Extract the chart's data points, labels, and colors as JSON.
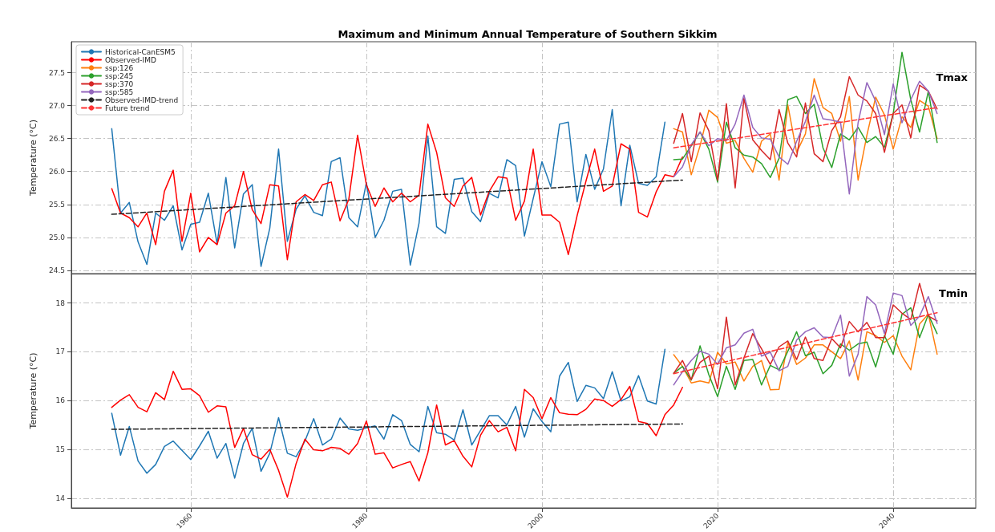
{
  "chart_data": [
    {
      "type": "line",
      "title": "Maximum and Minimum Annual Temperature of Southern Sikkim",
      "ylabel": "Temperature (°C)",
      "annotations": [
        "Tmax"
      ],
      "xlim": [
        1946.4,
        2049.4
      ],
      "xticks": [
        1960,
        1980,
        2000,
        2020,
        2040
      ],
      "ylim": [
        24.45,
        27.97
      ],
      "yticks": [
        24.5,
        {
          "value": 25,
          "label": "25.0"
        },
        25.5,
        {
          "value": 26,
          "label": "26.0"
        },
        26.5,
        {
          "value": 27,
          "label": "27.0"
        },
        27.5
      ],
      "grid": true,
      "legend": "top left",
      "tick_labels": "y",
      "marker": "none",
      "series": [
        {
          "name": "Historical-CanESM5",
          "color": "#1f77b4",
          "x": [
            1951,
            1952,
            1953,
            1954,
            1955,
            1956,
            1957,
            1958,
            1959,
            1960,
            1961,
            1962,
            1963,
            1964,
            1965,
            1966,
            1967,
            1968,
            1969,
            1970,
            1971,
            1972,
            1973,
            1974,
            1975,
            1976,
            1977,
            1978,
            1979,
            1980,
            1981,
            1982,
            1983,
            1984,
            1985,
            1986,
            1987,
            1988,
            1989,
            1990,
            1991,
            1992,
            1993,
            1994,
            1995,
            1996,
            1997,
            1998,
            1999,
            2000,
            2001,
            2002,
            2003,
            2004,
            2005,
            2006,
            2007,
            2008,
            2009,
            2010,
            2011,
            2012,
            2013,
            2014
          ],
          "values": [
            26.65,
            25.37,
            25.53,
            24.93,
            24.59,
            25.37,
            25.26,
            25.48,
            24.81,
            25.2,
            25.23,
            25.67,
            24.9,
            25.91,
            24.84,
            25.66,
            25.8,
            24.56,
            25.14,
            26.34,
            24.94,
            25.43,
            25.63,
            25.38,
            25.33,
            26.15,
            26.21,
            25.3,
            25.16,
            25.83,
            25.0,
            25.26,
            25.7,
            25.73,
            24.58,
            25.22,
            26.54,
            25.16,
            25.06,
            25.88,
            25.9,
            25.39,
            25.24,
            25.67,
            25.6,
            26.18,
            26.09,
            25.02,
            25.59,
            26.15,
            25.77,
            26.72,
            26.75,
            25.54,
            26.26,
            25.73,
            26.04,
            26.94,
            25.48,
            26.4,
            25.82,
            25.79,
            25.92,
            26.75
          ]
        },
        {
          "name": "Observed-IMD",
          "color": "#ff0000",
          "x": [
            1951,
            1952,
            1953,
            1954,
            1955,
            1956,
            1957,
            1958,
            1959,
            1960,
            1961,
            1962,
            1963,
            1964,
            1965,
            1966,
            1967,
            1968,
            1969,
            1970,
            1971,
            1972,
            1973,
            1974,
            1975,
            1976,
            1977,
            1978,
            1979,
            1980,
            1981,
            1982,
            1983,
            1984,
            1985,
            1986,
            1987,
            1988,
            1989,
            1990,
            1991,
            1992,
            1993,
            1994,
            1995,
            1996,
            1997,
            1998,
            1999,
            2000,
            2001,
            2002,
            2003,
            2004,
            2005,
            2006,
            2007,
            2008,
            2009,
            2010,
            2011,
            2012,
            2013,
            2014,
            2015,
            2016
          ],
          "values": [
            25.74,
            25.37,
            25.3,
            25.16,
            25.37,
            24.89,
            25.7,
            26.02,
            24.94,
            25.67,
            24.78,
            25.0,
            24.89,
            25.37,
            25.48,
            26.0,
            25.42,
            25.21,
            25.8,
            25.78,
            24.66,
            25.54,
            25.65,
            25.56,
            25.8,
            25.84,
            25.25,
            25.58,
            26.55,
            25.8,
            25.47,
            25.75,
            25.54,
            25.67,
            25.54,
            25.64,
            26.72,
            26.29,
            25.6,
            25.47,
            25.78,
            25.91,
            25.34,
            25.7,
            25.92,
            25.9,
            25.26,
            25.55,
            26.34,
            25.34,
            25.34,
            25.23,
            24.74,
            25.33,
            25.85,
            26.34,
            25.7,
            25.78,
            26.42,
            26.34,
            25.38,
            25.31,
            25.69,
            25.95,
            25.92,
            26.22
          ]
        },
        {
          "name": "ssp:126",
          "color": "#ff7f0e",
          "x": [
            2015,
            2016,
            2017,
            2018,
            2019,
            2020,
            2021,
            2022,
            2023,
            2024,
            2025,
            2026,
            2027,
            2028,
            2029,
            2030,
            2031,
            2032,
            2033,
            2034,
            2035,
            2036,
            2037,
            2038,
            2039,
            2040,
            2041,
            2042,
            2043,
            2044,
            2045
          ],
          "values": [
            26.65,
            26.6,
            25.95,
            26.39,
            26.93,
            26.82,
            26.43,
            26.47,
            26.2,
            25.99,
            26.46,
            26.57,
            25.87,
            27.01,
            26.29,
            26.57,
            27.41,
            26.97,
            26.88,
            26.46,
            27.14,
            25.87,
            26.55,
            27.13,
            26.86,
            26.34,
            26.83,
            26.67,
            27.08,
            26.99,
            26.5
          ]
        },
        {
          "name": "ssp:245",
          "color": "#2ca02c",
          "x": [
            2015,
            2016,
            2017,
            2018,
            2019,
            2020,
            2021,
            2022,
            2023,
            2024,
            2025,
            2026,
            2027,
            2028,
            2029,
            2030,
            2031,
            2032,
            2033,
            2034,
            2035,
            2036,
            2037,
            2038,
            2039,
            2040,
            2041,
            2042,
            2043,
            2044,
            2045
          ],
          "values": [
            26.18,
            26.19,
            26.39,
            26.6,
            26.34,
            25.84,
            26.75,
            26.36,
            26.25,
            26.22,
            26.12,
            25.91,
            26.2,
            27.09,
            27.14,
            26.88,
            27.02,
            26.36,
            26.06,
            26.57,
            26.48,
            26.67,
            26.44,
            26.53,
            26.37,
            26.88,
            27.81,
            27.09,
            26.6,
            27.22,
            26.44
          ]
        },
        {
          "name": "ssp:370",
          "color": "#d62728",
          "x": [
            2015,
            2016,
            2017,
            2018,
            2019,
            2020,
            2021,
            2022,
            2023,
            2024,
            2025,
            2026,
            2027,
            2028,
            2029,
            2030,
            2031,
            2032,
            2033,
            2034,
            2035,
            2036,
            2037,
            2038,
            2039,
            2040,
            2041,
            2042,
            2043,
            2044,
            2045
          ],
          "values": [
            26.43,
            26.88,
            26.15,
            26.89,
            26.62,
            25.87,
            27.03,
            25.75,
            27.11,
            26.48,
            26.32,
            26.18,
            26.94,
            26.43,
            26.22,
            27.04,
            26.27,
            26.15,
            26.62,
            26.83,
            27.44,
            27.16,
            27.07,
            26.88,
            26.29,
            26.88,
            27.01,
            26.51,
            27.31,
            27.22,
            26.95
          ]
        },
        {
          "name": "ssp:585",
          "color": "#9467bd",
          "x": [
            2015,
            2016,
            2017,
            2018,
            2019,
            2020,
            2021,
            2022,
            2023,
            2024,
            2025,
            2026,
            2027,
            2028,
            2029,
            2030,
            2031,
            2032,
            2033,
            2034,
            2035,
            2036,
            2037,
            2038,
            2039,
            2040,
            2041,
            2042,
            2043,
            2044,
            2045
          ],
          "values": [
            25.92,
            26.07,
            26.41,
            26.6,
            26.39,
            26.5,
            26.47,
            26.72,
            27.16,
            26.67,
            26.51,
            26.49,
            26.22,
            26.11,
            26.46,
            26.76,
            27.16,
            26.8,
            26.78,
            26.75,
            25.66,
            26.74,
            27.35,
            27.07,
            26.56,
            27.33,
            26.74,
            27.09,
            27.37,
            27.22,
            26.88
          ]
        },
        {
          "name": "Observed-IMD-trend",
          "color": "#222222",
          "line_style": "dashed",
          "x": [
            1951,
            2016
          ],
          "values": [
            25.35,
            25.87
          ]
        },
        {
          "name": "Future trend",
          "color": "#ff3333",
          "line_style": "dashed",
          "x": [
            2015,
            2045
          ],
          "values": [
            26.36,
            26.97
          ]
        }
      ]
    },
    {
      "type": "line",
      "ylabel": "Temperature (°C)",
      "annotations": [
        "Tmin"
      ],
      "xlim": [
        1946.4,
        2049.4
      ],
      "xticks": [
        1960,
        1980,
        2000,
        2020,
        2040
      ],
      "ylim": [
        13.8,
        18.6
      ],
      "yticks": [
        14,
        15,
        16,
        17,
        18
      ],
      "grid": true,
      "marker": "none",
      "series": [
        {
          "color": "#1f77b4",
          "x": [
            1951,
            1952,
            1953,
            1954,
            1955,
            1956,
            1957,
            1958,
            1959,
            1960,
            1961,
            1962,
            1963,
            1964,
            1965,
            1966,
            1967,
            1968,
            1969,
            1970,
            1971,
            1972,
            1973,
            1974,
            1975,
            1976,
            1977,
            1978,
            1979,
            1980,
            1981,
            1982,
            1983,
            1984,
            1985,
            1986,
            1987,
            1988,
            1989,
            1990,
            1991,
            1992,
            1993,
            1994,
            1995,
            1996,
            1997,
            1998,
            1999,
            2000,
            2001,
            2002,
            2003,
            2004,
            2005,
            2006,
            2007,
            2008,
            2009,
            2010,
            2011,
            2012,
            2013,
            2014
          ],
          "values": [
            15.74,
            14.88,
            15.47,
            14.76,
            14.51,
            14.69,
            15.06,
            15.17,
            14.98,
            14.79,
            15.07,
            15.37,
            14.82,
            15.12,
            14.41,
            15.12,
            15.43,
            14.55,
            14.92,
            15.65,
            14.92,
            14.85,
            15.17,
            15.63,
            15.09,
            15.21,
            15.64,
            15.42,
            15.39,
            15.44,
            15.48,
            15.21,
            15.71,
            15.59,
            15.1,
            14.95,
            15.88,
            15.34,
            15.31,
            15.19,
            15.81,
            15.09,
            15.39,
            15.69,
            15.69,
            15.5,
            15.88,
            15.25,
            15.83,
            15.57,
            15.36,
            16.5,
            16.78,
            15.98,
            16.31,
            16.26,
            16.04,
            16.59,
            15.99,
            16.08,
            16.51,
            15.99,
            15.93,
            17.05
          ]
        },
        {
          "color": "#ff0000",
          "x": [
            1951,
            1952,
            1953,
            1954,
            1955,
            1956,
            1957,
            1958,
            1959,
            1960,
            1961,
            1962,
            1963,
            1964,
            1965,
            1966,
            1967,
            1968,
            1969,
            1970,
            1971,
            1972,
            1973,
            1974,
            1975,
            1976,
            1977,
            1978,
            1979,
            1980,
            1981,
            1982,
            1983,
            1984,
            1985,
            1986,
            1987,
            1988,
            1989,
            1990,
            1991,
            1992,
            1993,
            1994,
            1995,
            1996,
            1997,
            1998,
            1999,
            2000,
            2001,
            2002,
            2003,
            2004,
            2005,
            2006,
            2007,
            2008,
            2009,
            2010,
            2011,
            2012,
            2013,
            2014,
            2015,
            2016
          ],
          "values": [
            15.86,
            16.01,
            16.12,
            15.86,
            15.77,
            16.16,
            16.02,
            16.6,
            16.23,
            16.24,
            16.1,
            15.76,
            15.89,
            15.87,
            15.04,
            15.43,
            14.89,
            14.8,
            15.0,
            14.57,
            14.02,
            14.71,
            15.21,
            14.99,
            14.97,
            15.04,
            15.02,
            14.9,
            15.12,
            15.58,
            14.9,
            14.93,
            14.62,
            14.69,
            14.75,
            14.35,
            14.93,
            15.91,
            15.09,
            15.18,
            14.86,
            14.64,
            15.29,
            15.59,
            15.36,
            15.45,
            14.97,
            16.23,
            16.06,
            15.63,
            16.06,
            15.75,
            15.72,
            15.71,
            15.82,
            16.03,
            16.0,
            15.88,
            16.02,
            16.29,
            15.57,
            15.53,
            15.28,
            15.71,
            15.91,
            16.27
          ]
        },
        {
          "color": "#ff7f0e",
          "x": [
            2015,
            2016,
            2017,
            2018,
            2019,
            2020,
            2021,
            2022,
            2023,
            2024,
            2025,
            2026,
            2027,
            2028,
            2029,
            2030,
            2031,
            2032,
            2033,
            2034,
            2035,
            2036,
            2037,
            2038,
            2039,
            2040,
            2041,
            2042,
            2043,
            2044,
            2045
          ],
          "values": [
            16.94,
            16.7,
            16.36,
            16.4,
            16.36,
            16.99,
            16.75,
            16.79,
            16.4,
            16.7,
            16.82,
            16.22,
            16.23,
            17.19,
            16.74,
            16.87,
            17.14,
            17.14,
            17.0,
            16.86,
            17.22,
            16.42,
            17.41,
            17.33,
            17.19,
            17.33,
            16.91,
            16.63,
            17.57,
            17.77,
            16.95
          ]
        },
        {
          "color": "#2ca02c",
          "x": [
            2015,
            2016,
            2017,
            2018,
            2019,
            2020,
            2021,
            2022,
            2023,
            2024,
            2025,
            2026,
            2027,
            2028,
            2029,
            2030,
            2031,
            2032,
            2033,
            2034,
            2035,
            2036,
            2037,
            2038,
            2039,
            2040,
            2041,
            2042,
            2043,
            2044,
            2045
          ],
          "values": [
            16.56,
            16.7,
            16.42,
            17.12,
            16.53,
            16.08,
            16.7,
            16.23,
            16.82,
            16.84,
            16.32,
            16.72,
            16.63,
            17.01,
            17.41,
            16.92,
            16.99,
            16.55,
            16.72,
            17.16,
            17.03,
            17.16,
            17.2,
            16.69,
            17.33,
            16.95,
            17.77,
            17.9,
            17.29,
            17.76,
            17.37
          ]
        },
        {
          "color": "#d62728",
          "x": [
            2015,
            2016,
            2017,
            2018,
            2019,
            2020,
            2021,
            2022,
            2023,
            2024,
            2025,
            2026,
            2027,
            2028,
            2029,
            2030,
            2031,
            2032,
            2033,
            2034,
            2035,
            2036,
            2037,
            2038,
            2039,
            2040,
            2041,
            2042,
            2043,
            2044,
            2045
          ],
          "values": [
            16.56,
            16.82,
            16.43,
            16.78,
            16.91,
            16.24,
            17.71,
            16.32,
            16.87,
            17.37,
            17.06,
            16.74,
            17.1,
            17.22,
            16.84,
            17.3,
            16.86,
            16.82,
            17.27,
            17.08,
            17.62,
            17.41,
            17.6,
            17.29,
            17.29,
            17.96,
            17.79,
            17.66,
            18.4,
            17.73,
            17.63
          ]
        },
        {
          "color": "#9467bd",
          "x": [
            2015,
            2016,
            2017,
            2018,
            2019,
            2020,
            2021,
            2022,
            2023,
            2024,
            2025,
            2026,
            2027,
            2028,
            2029,
            2030,
            2031,
            2032,
            2033,
            2034,
            2035,
            2036,
            2037,
            2038,
            2039,
            2040,
            2041,
            2042,
            2043,
            2044,
            2045
          ],
          "values": [
            16.32,
            16.59,
            16.82,
            17.01,
            16.95,
            16.74,
            17.08,
            17.14,
            17.38,
            17.46,
            16.91,
            16.99,
            16.61,
            16.7,
            17.24,
            17.41,
            17.49,
            17.3,
            17.29,
            17.75,
            16.5,
            16.95,
            18.13,
            17.96,
            17.37,
            18.2,
            18.15,
            17.54,
            17.73,
            18.13,
            17.58
          ]
        },
        {
          "color": "#222222",
          "line_style": "dashed",
          "x": [
            1951,
            2016
          ],
          "values": [
            15.41,
            15.52
          ]
        },
        {
          "color": "#ff3333",
          "line_style": "dashed",
          "x": [
            2015,
            2045
          ],
          "values": [
            16.55,
            17.8
          ]
        }
      ]
    }
  ]
}
